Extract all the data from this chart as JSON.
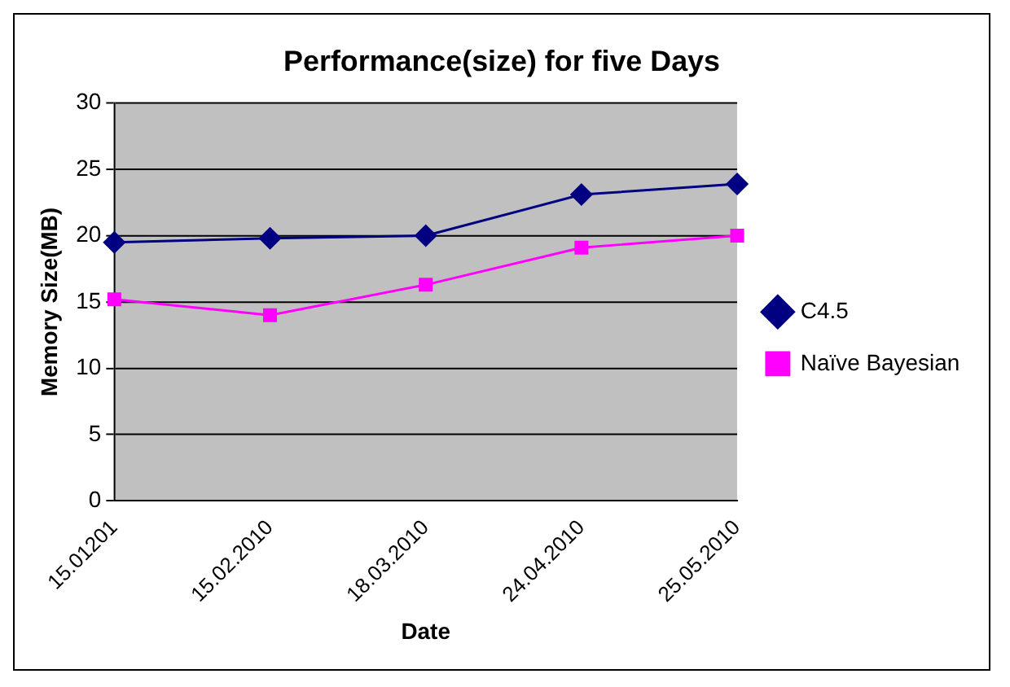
{
  "chart_data": {
    "type": "line",
    "title": "Performance(size) for five Days",
    "xlabel": "Date",
    "ylabel": "Memory Size(MB)",
    "categories": [
      "15.01201",
      "15.02.2010",
      "18.03.2010",
      "24.04.2010",
      "25.05.2010"
    ],
    "series": [
      {
        "name": "C4.5",
        "color": "#000080",
        "values": [
          19.5,
          19.8,
          20,
          23.1,
          23.9
        ],
        "marker": "diamond"
      },
      {
        "name": "Naïve Bayesian",
        "color": "#ff00ff",
        "values": [
          15.2,
          14,
          16.3,
          19.1,
          20
        ],
        "marker": "square"
      }
    ],
    "ylim": [
      0,
      30
    ],
    "yticks": [
      0,
      5,
      10,
      15,
      20,
      25,
      30
    ],
    "grid": "y",
    "legend": "right",
    "line_style": "solid"
  }
}
